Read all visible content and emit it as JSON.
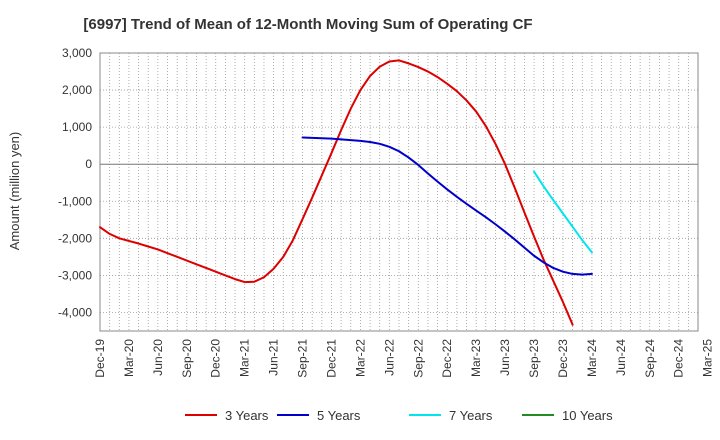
{
  "chart_data": {
    "type": "line",
    "title": "[6997]  Trend of Mean of 12-Month Moving Sum of Operating CF",
    "xlabel": "",
    "ylabel": "Amount (million yen)",
    "ylim": [
      -4500,
      3000
    ],
    "yticks": [
      3000,
      2000,
      1000,
      0,
      -1000,
      -2000,
      -3000,
      -4000
    ],
    "ytick_labels": [
      "3,000",
      "2,000",
      "1,000",
      "0",
      "-1,000",
      "-2,000",
      "-3,000",
      "-4,000"
    ],
    "x_start": "Dec-19",
    "x_months": 63,
    "xtick_labels": [
      "Dec-19",
      "Mar-20",
      "Jun-20",
      "Sep-20",
      "Dec-20",
      "Mar-21",
      "Jun-21",
      "Sep-21",
      "Dec-21",
      "Mar-22",
      "Jun-22",
      "Sep-22",
      "Dec-22",
      "Mar-23",
      "Jun-23",
      "Sep-23",
      "Dec-23",
      "Mar-24",
      "Jun-24",
      "Sep-24",
      "Dec-24",
      "Mar-25"
    ],
    "grid": true,
    "legend_position": "bottom",
    "series": [
      {
        "name": "3 Years",
        "color": "#dd0000",
        "start_index": 0,
        "values": [
          -1700,
          -1880,
          -2000,
          -2070,
          -2140,
          -2220,
          -2300,
          -2400,
          -2500,
          -2600,
          -2700,
          -2800,
          -2900,
          -3000,
          -3100,
          -3180,
          -3170,
          -3050,
          -2820,
          -2500,
          -2050,
          -1480,
          -900,
          -300,
          300,
          920,
          1500,
          2000,
          2380,
          2630,
          2770,
          2800,
          2720,
          2620,
          2500,
          2350,
          2170,
          1970,
          1720,
          1420,
          1030,
          550,
          0,
          -640,
          -1300,
          -1950,
          -2580,
          -3150,
          -3720,
          -4330
        ]
      },
      {
        "name": "5 Years",
        "color": "#0000cc",
        "start_index": 21,
        "values": [
          720,
          710,
          700,
          690,
          670,
          650,
          630,
          600,
          550,
          470,
          350,
          180,
          -20,
          -250,
          -470,
          -680,
          -880,
          -1070,
          -1250,
          -1430,
          -1620,
          -1820,
          -2030,
          -2250,
          -2470,
          -2650,
          -2800,
          -2900,
          -2960,
          -2980,
          -2960
        ]
      },
      {
        "name": "7 Years",
        "color": "#00e5ee",
        "start_index": 45,
        "values": [
          -200,
          -600,
          -970,
          -1330,
          -1690,
          -2050,
          -2380
        ]
      },
      {
        "name": "10 Years",
        "color": "#228b22",
        "start_index": 0,
        "values": []
      }
    ]
  }
}
